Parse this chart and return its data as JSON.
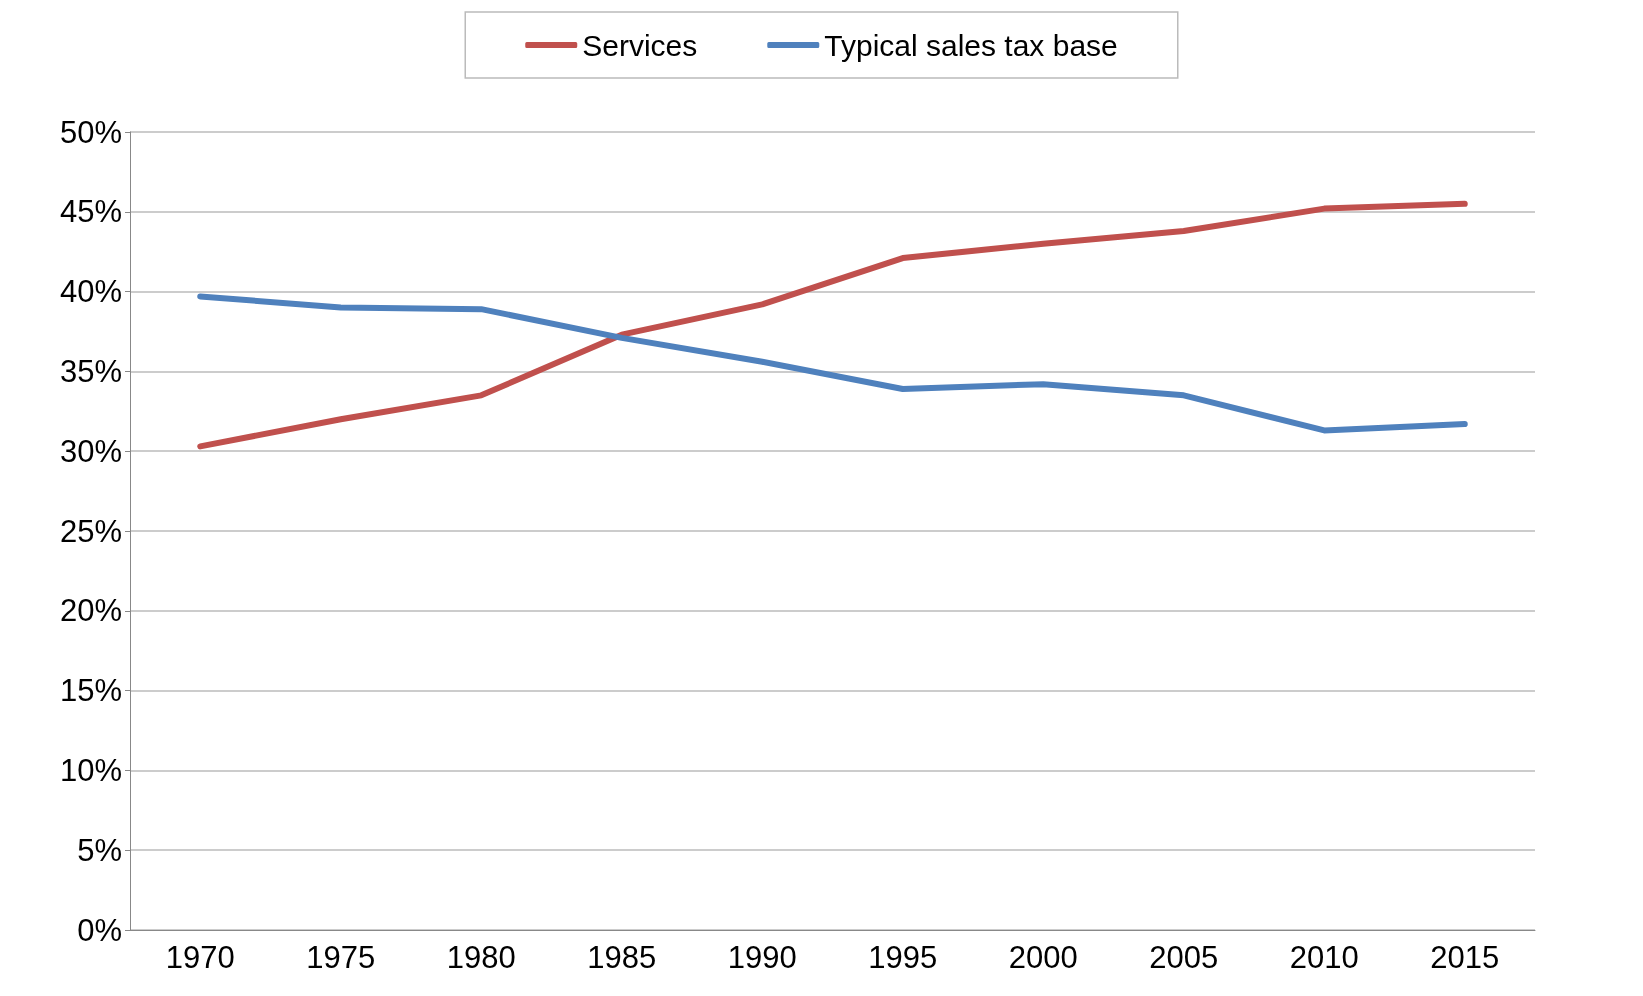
{
  "chart_data": {
    "type": "line",
    "categories": [
      "1970",
      "1975",
      "1980",
      "1985",
      "1990",
      "1995",
      "2000",
      "2005",
      "2010",
      "2015"
    ],
    "series": [
      {
        "name": "Services",
        "color": "#c0504d",
        "values": [
          30.3,
          32.0,
          33.5,
          37.3,
          39.2,
          42.1,
          43.0,
          43.8,
          45.2,
          45.5
        ]
      },
      {
        "name": "Typical sales tax base",
        "color": "#4f81bd",
        "values": [
          39.7,
          39.0,
          38.9,
          37.1,
          35.6,
          33.9,
          34.2,
          33.5,
          31.3,
          31.7
        ]
      }
    ],
    "ylim": [
      0,
      50
    ],
    "yticks": [
      {
        "value": 0,
        "label": "0%"
      },
      {
        "value": 5,
        "label": "5%"
      },
      {
        "value": 10,
        "label": "10%"
      },
      {
        "value": 15,
        "label": "15%"
      },
      {
        "value": 20,
        "label": "20%"
      },
      {
        "value": 25,
        "label": "25%"
      },
      {
        "value": 30,
        "label": "30%"
      },
      {
        "value": 35,
        "label": "35%"
      },
      {
        "value": 40,
        "label": "40%"
      },
      {
        "value": 45,
        "label": "45%"
      },
      {
        "value": 50,
        "label": "50%"
      }
    ],
    "grid": "y",
    "legend": "top",
    "marker": "none",
    "line_style": "solid"
  }
}
